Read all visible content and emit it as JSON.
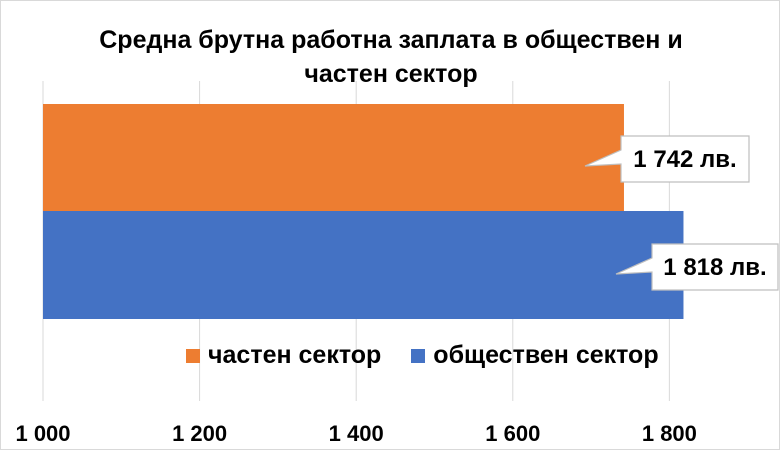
{
  "chart_data": {
    "type": "bar",
    "orientation": "horizontal",
    "title": "Средна брутна работна заплата в обществен и частен сектор",
    "series": [
      {
        "name": "частен сектор",
        "value": 1742,
        "label": "1 742 лв.",
        "color": "#ED7D31"
      },
      {
        "name": "обществен сектор",
        "value": 1818,
        "label": "1 818 лв.",
        "color": "#4472C4"
      }
    ],
    "xlim": [
      1000,
      1940
    ],
    "xticks": [
      1000,
      1200,
      1400,
      1600,
      1800
    ],
    "xtick_labels": [
      "1 000",
      "1 200",
      "1 400",
      "1 600",
      "1 800"
    ],
    "grid": true,
    "legend_position": "bottom"
  }
}
